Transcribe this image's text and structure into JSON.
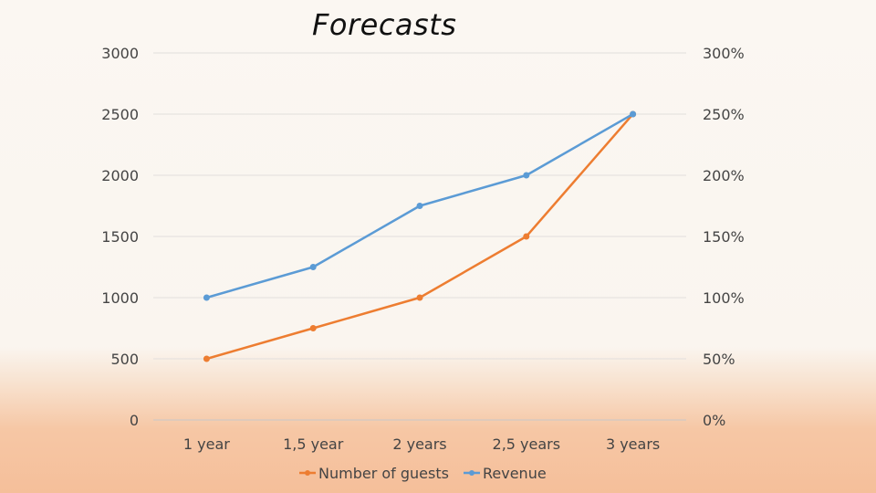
{
  "chart_data": {
    "type": "line",
    "title": "Forecasts",
    "categories": [
      "1 year",
      "1,5 year",
      "2 years",
      "2,5 years",
      "3 years"
    ],
    "series": [
      {
        "name": "Number of guests",
        "axis": "left",
        "color": "#ed7d31",
        "values": [
          500,
          750,
          1000,
          1500,
          2500
        ]
      },
      {
        "name": "Revenue",
        "axis": "right",
        "color": "#5b9bd5",
        "values": [
          1.0,
          1.25,
          1.75,
          2.0,
          2.5
        ]
      }
    ],
    "y_left": {
      "ticks": [
        "0",
        "500",
        "1000",
        "1500",
        "2000",
        "2500",
        "3000"
      ],
      "ylim": [
        0,
        3000
      ]
    },
    "y_right": {
      "ticks": [
        "0%",
        "50%",
        "100%",
        "150%",
        "200%",
        "250%",
        "300%"
      ],
      "ylim": [
        0,
        3
      ]
    },
    "grid": true,
    "legend_position": "bottom"
  }
}
